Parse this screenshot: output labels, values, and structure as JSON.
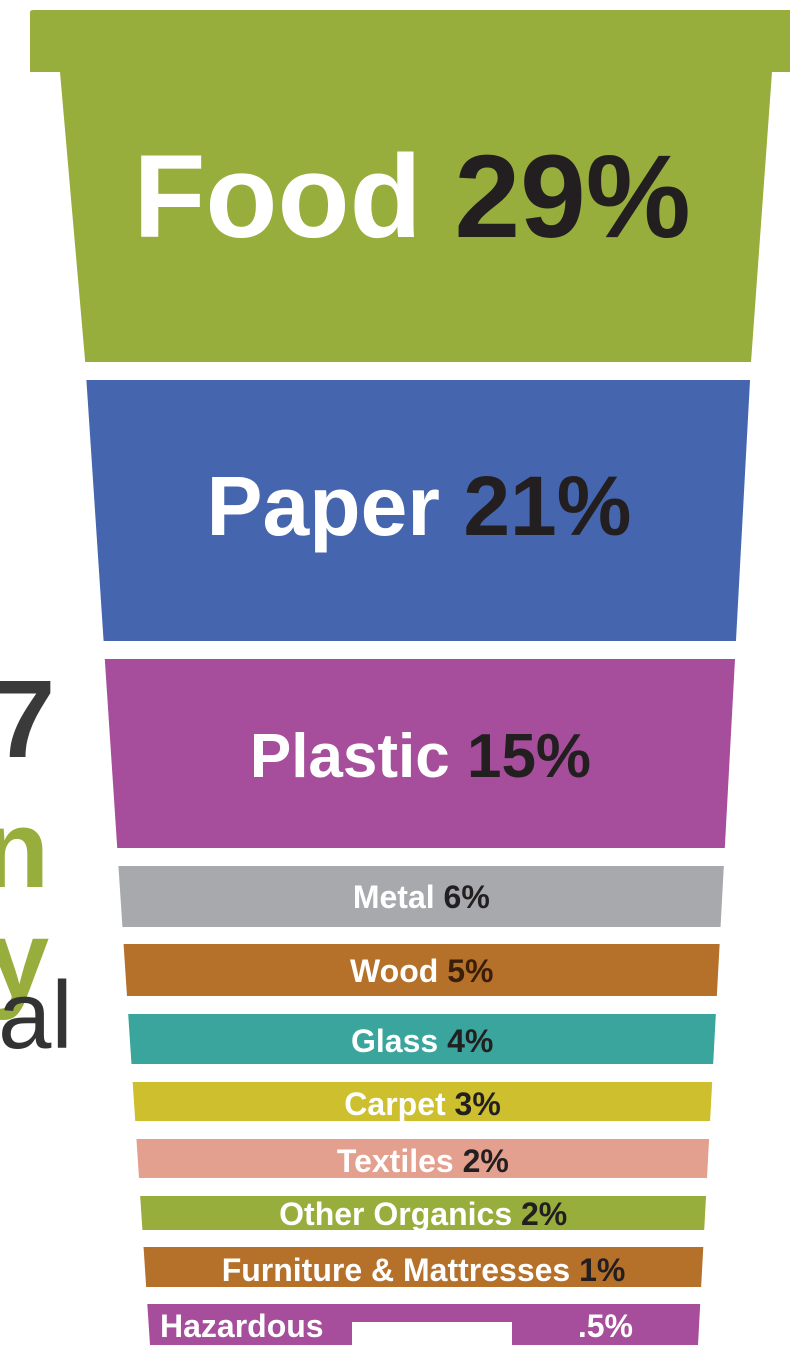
{
  "left_fragments": [
    "7",
    "n",
    "y",
    "al"
  ],
  "chart_data": {
    "type": "bar",
    "title": "",
    "categories": [
      "Food",
      "Paper",
      "Plastic",
      "Metal",
      "Wood",
      "Glass",
      "Carpet",
      "Textiles",
      "Other Organics",
      "Furniture & Mattresses",
      "Hazardous"
    ],
    "values": [
      29,
      21,
      15,
      6,
      5,
      4,
      3,
      2,
      2,
      1,
      0.5
    ],
    "value_labels": [
      "29%",
      "21%",
      "15%",
      "6%",
      "5%",
      "4%",
      "3%",
      "2%",
      "2%",
      "1%",
      ".5%"
    ],
    "colors": [
      "#97ad3c",
      "#4566ae",
      "#a64d9b",
      "#a7a9ac",
      "#b5702a",
      "#3aa59c",
      "#cdbf2e",
      "#e3a08f",
      "#97ad3c",
      "#b5702a",
      "#a64d9b"
    ],
    "value_colors": [
      "#231f20",
      "#231f20",
      "#231f20",
      "#231f20",
      "#3b1e08",
      "#231f20",
      "#231f20",
      "#231f20",
      "#231f20",
      "#231f20",
      "#ffffff"
    ],
    "label_color": "#ffffff",
    "xlabel": "",
    "ylabel": ""
  }
}
